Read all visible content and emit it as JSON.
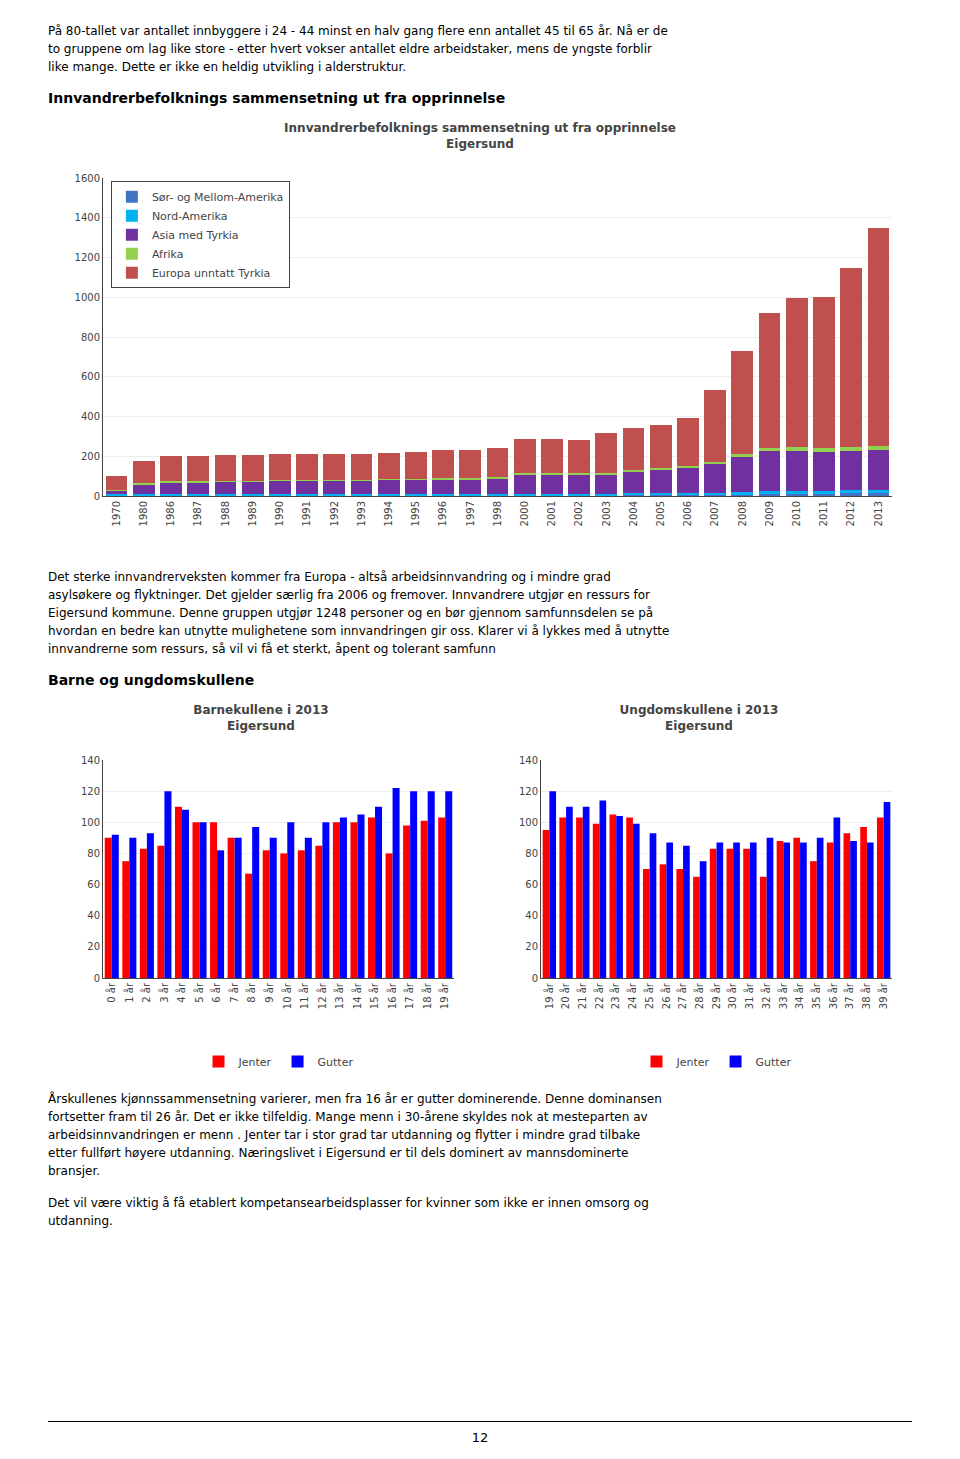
{
  "intro": [
    "På 80-tallet var antallet innbyggere i 24 - 44 minst en halv gang flere enn antallet 45 til 65 år. Nå er de",
    "to gruppene om lag like store - etter hvert vokser antallet eldre arbeidstaker, mens de yngste forblir",
    "like mange. Dette er ikke en heldig utvikling i alderstruktur."
  ],
  "section1_heading": "Innvandrerbefolknings sammensetning ut fra opprinnelse",
  "text_after_chart1": [
    "Det sterke innvandrerveksten kommer fra Europa - altså arbeidsinnvandring og i mindre grad",
    "asylsøkere og flyktninger. Det gjelder særlig fra 2006 og fremover.  Innvandrere utgjør en ressurs for",
    "Eigersund kommune. Denne gruppen utgjør 1248 personer og en bør gjennom samfunnsdelen se på",
    "hvordan en bedre kan utnytte mulighetene som innvandringen gir oss. Klarer vi å lykkes med å utnytte",
    "innvandrerne som ressurs, så vil vi få et sterkt, åpent og tolerant samfunn"
  ],
  "section2_heading": "Barne og ungdomskullene",
  "text_after_chart2": [
    "Årskullenes kjønnssammensetning varierer, men fra 16 år er gutter dominerende. Denne dominansen",
    "fortsetter fram til 26 år. Det er ikke tilfeldig. Mange menn i 30-årene skyldes nok at mesteparten av",
    "arbeidsinnvandringen er menn . Jenter tar i stor grad tar utdanning og flytter i mindre grad tilbake",
    "etter fullført høyere utdanning. Næringslivet i Eigersund er til dels dominert av mannsdominerte",
    "bransjer."
  ],
  "text_final": [
    "Det vil være viktig å få etablert kompetansearbeidsplasser for kvinner som ikke er innen omsorg og",
    "utdanning."
  ],
  "page_number": "12",
  "chart_data": [
    {
      "type": "bar",
      "title": "Innvandrerbefolknings sammensetning ut fra opprinnelse",
      "subtitle": "Eigersund",
      "stacked": true,
      "categories": [
        "1970",
        "1980",
        "1986",
        "1987",
        "1988",
        "1989",
        "1990",
        "1991",
        "1992",
        "1993",
        "1994",
        "1995",
        "1996",
        "1997",
        "1998",
        "2000",
        "2001",
        "2002",
        "2003",
        "2004",
        "2005",
        "2006",
        "2007",
        "2008",
        "2009",
        "2010",
        "2011",
        "2012",
        "2013"
      ],
      "series": [
        {
          "name": "Sør- og Mellom-Amerika",
          "color": "#4472C4",
          "values": [
            5,
            5,
            5,
            5,
            5,
            5,
            5,
            5,
            5,
            5,
            5,
            5,
            5,
            5,
            5,
            5,
            5,
            5,
            5,
            10,
            10,
            10,
            10,
            10,
            15,
            15,
            15,
            20,
            20
          ]
        },
        {
          "name": "Nord-Amerika",
          "color": "#00B0F0",
          "values": [
            3,
            3,
            3,
            3,
            3,
            3,
            3,
            3,
            3,
            3,
            3,
            3,
            3,
            3,
            3,
            5,
            5,
            5,
            5,
            5,
            5,
            5,
            5,
            10,
            10,
            10,
            10,
            10,
            10
          ]
        },
        {
          "name": "Asia med Tyrkia",
          "color": "#7030A0",
          "values": [
            20,
            50,
            60,
            60,
            65,
            65,
            70,
            70,
            70,
            70,
            75,
            75,
            75,
            75,
            80,
            100,
            100,
            100,
            100,
            110,
            120,
            130,
            150,
            180,
            200,
            200,
            195,
            195,
            200
          ]
        },
        {
          "name": "Afrika",
          "color": "#92D050",
          "values": [
            2,
            5,
            5,
            5,
            5,
            5,
            5,
            5,
            5,
            5,
            5,
            5,
            8,
            8,
            8,
            8,
            8,
            8,
            8,
            8,
            8,
            8,
            8,
            10,
            15,
            20,
            20,
            20,
            20
          ]
        },
        {
          "name": "Europa unntatt Tyrkia",
          "color": "#C0504D",
          "values": [
            70,
            115,
            130,
            130,
            130,
            130,
            130,
            130,
            130,
            130,
            130,
            135,
            140,
            140,
            145,
            170,
            170,
            165,
            200,
            210,
            215,
            240,
            360,
            520,
            680,
            750,
            760,
            900,
            1100
          ]
        }
      ],
      "ylim": [
        0,
        1600
      ],
      "yticks": [
        0,
        200,
        400,
        600,
        800,
        1000,
        1200,
        1400,
        1600
      ],
      "grid": true,
      "legend": "upper left"
    },
    {
      "type": "bar",
      "title": "Barnekullene i 2013",
      "subtitle": "Eigersund",
      "categories": [
        "0 år",
        "1 år",
        "2 år",
        "3 år",
        "4 år",
        "5 år",
        "6 år",
        "7 år",
        "8 år",
        "9 år",
        "10 år",
        "11 år",
        "12 år",
        "13 år",
        "14 år",
        "15 år",
        "16 år",
        "17 år",
        "18 år",
        "19 år"
      ],
      "series": [
        {
          "name": "Jenter",
          "color": "#FF0000",
          "values": [
            90,
            75,
            83,
            85,
            110,
            100,
            100,
            90,
            67,
            82,
            80,
            82,
            85,
            100,
            100,
            103,
            80,
            98,
            101,
            103
          ]
        },
        {
          "name": "Gutter",
          "color": "#0000FF",
          "values": [
            92,
            90,
            93,
            120,
            108,
            100,
            82,
            90,
            97,
            90,
            100,
            90,
            100,
            103,
            105,
            110,
            122,
            120,
            120,
            120
          ]
        }
      ],
      "ylim": [
        0,
        140
      ],
      "yticks": [
        0,
        20,
        40,
        60,
        80,
        100,
        120,
        140
      ],
      "grid": true,
      "legend": "bottom"
    },
    {
      "type": "bar",
      "title": "Ungdomskullene i 2013",
      "subtitle": "Eigersund",
      "categories": [
        "19 år",
        "20 år",
        "21 år",
        "22 år",
        "23 år",
        "24 år",
        "25 år",
        "26 år",
        "27 år",
        "28 år",
        "29 år",
        "30 år",
        "31 år",
        "32 år",
        "33 år",
        "34 år",
        "35 år",
        "36 år",
        "37 år",
        "38 år",
        "39 år"
      ],
      "series": [
        {
          "name": "Jenter",
          "color": "#FF0000",
          "values": [
            95,
            103,
            103,
            99,
            105,
            103,
            70,
            73,
            70,
            65,
            83,
            83,
            83,
            65,
            88,
            90,
            75,
            87,
            93,
            97,
            103
          ]
        },
        {
          "name": "Gutter",
          "color": "#0000FF",
          "values": [
            120,
            110,
            110,
            114,
            104,
            99,
            93,
            87,
            85,
            75,
            87,
            87,
            87,
            90,
            87,
            87,
            90,
            103,
            88,
            87,
            113
          ]
        }
      ],
      "ylim": [
        0,
        140
      ],
      "yticks": [
        0,
        20,
        40,
        60,
        80,
        100,
        120,
        140
      ],
      "grid": true,
      "legend": "bottom"
    }
  ]
}
